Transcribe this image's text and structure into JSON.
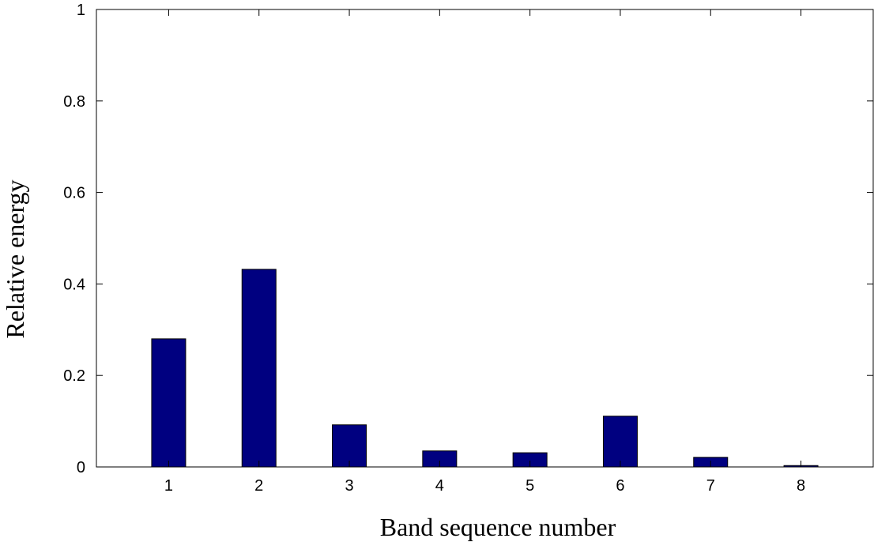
{
  "chart_data": {
    "type": "bar",
    "title": "",
    "xlabel": "Band sequence number",
    "ylabel": "Relative energy",
    "categories": [
      "1",
      "2",
      "3",
      "4",
      "5",
      "6",
      "7",
      "8"
    ],
    "values": [
      0.28,
      0.432,
      0.092,
      0.035,
      0.031,
      0.111,
      0.021,
      0.003
    ],
    "xlim": [
      0.2,
      8.8
    ],
    "ylim": [
      0,
      1
    ],
    "yticks": [
      0,
      0.2,
      0.4,
      0.6,
      0.8,
      1
    ],
    "yticklabels": [
      "0",
      "0.2",
      "0.4",
      "0.6",
      "0.8",
      "1"
    ],
    "bar_color": "#000080",
    "grid": false,
    "legend": "none"
  }
}
